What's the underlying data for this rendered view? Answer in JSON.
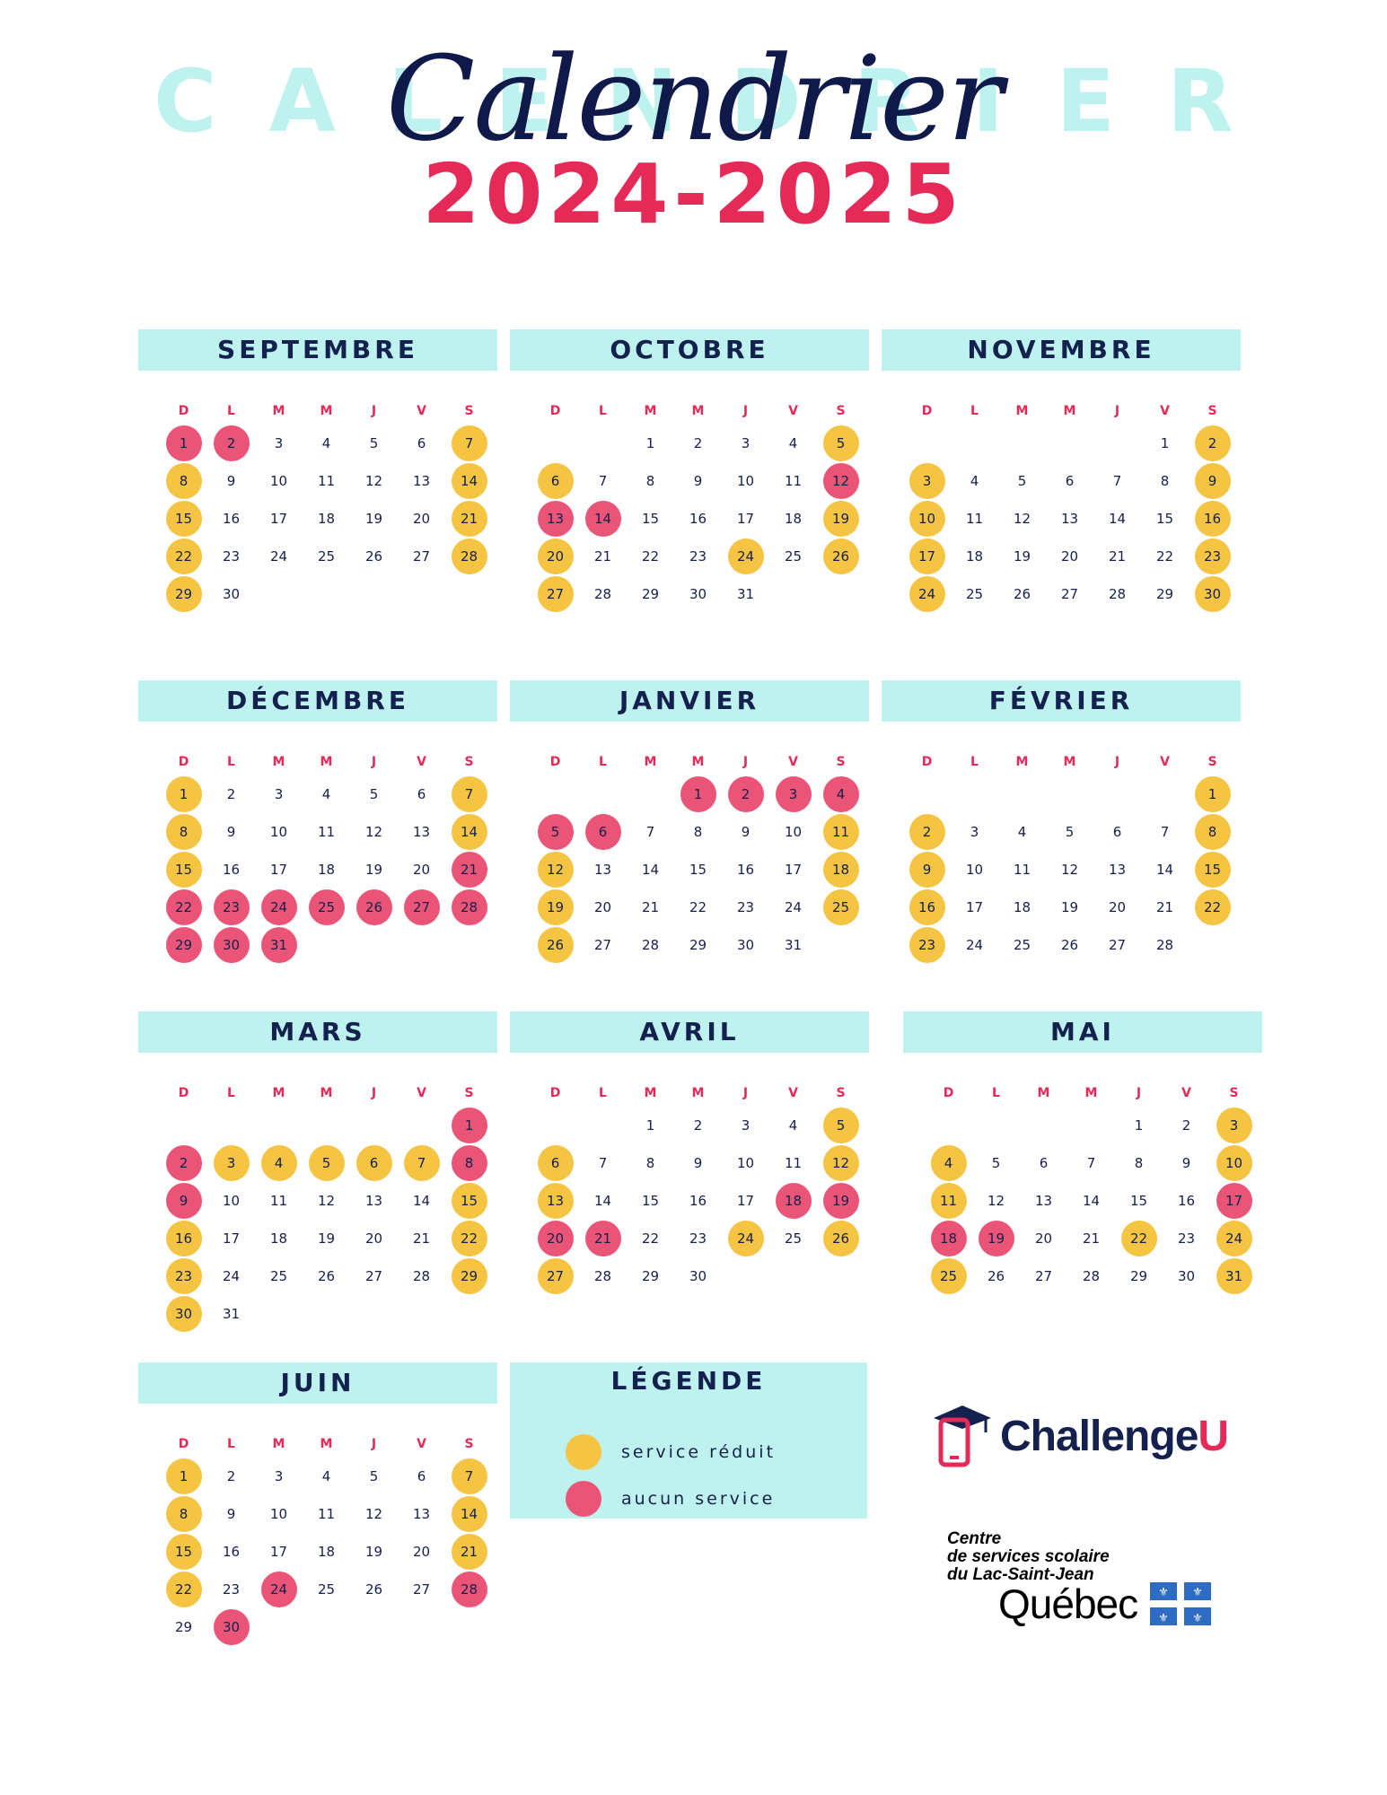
{
  "header": {
    "background_letters": [
      "C",
      "A",
      "L",
      "E",
      "N",
      "D",
      "R",
      "I",
      "E",
      "R"
    ],
    "script_title": "Calendrier",
    "year": "2024-2025"
  },
  "weekday_labels": [
    "D",
    "L",
    "M",
    "M",
    "J",
    "V",
    "S"
  ],
  "colors": {
    "reduced": "#f6c443",
    "none": "#ea5577",
    "header_bg": "#bdf2ef",
    "accent": "#e52a57",
    "navy": "#14204d"
  },
  "months": [
    {
      "name": "SEPTEMBRE",
      "weeks": [
        [
          {
            "d": "1",
            "s": "r"
          },
          {
            "d": "2",
            "s": "r"
          },
          {
            "d": "3"
          },
          {
            "d": "4"
          },
          {
            "d": "5"
          },
          {
            "d": "6"
          },
          {
            "d": "7",
            "s": "y"
          }
        ],
        [
          {
            "d": "8",
            "s": "y"
          },
          {
            "d": "9"
          },
          {
            "d": "10"
          },
          {
            "d": "11"
          },
          {
            "d": "12"
          },
          {
            "d": "13"
          },
          {
            "d": "14",
            "s": "y"
          }
        ],
        [
          {
            "d": "15",
            "s": "y"
          },
          {
            "d": "16"
          },
          {
            "d": "17"
          },
          {
            "d": "18"
          },
          {
            "d": "19"
          },
          {
            "d": "20"
          },
          {
            "d": "21",
            "s": "y"
          }
        ],
        [
          {
            "d": "22",
            "s": "y"
          },
          {
            "d": "23"
          },
          {
            "d": "24"
          },
          {
            "d": "25"
          },
          {
            "d": "26"
          },
          {
            "d": "27"
          },
          {
            "d": "28",
            "s": "y"
          }
        ],
        [
          {
            "d": "29",
            "s": "y"
          },
          {
            "d": "30"
          },
          {},
          {},
          {},
          {},
          {}
        ]
      ]
    },
    {
      "name": "OCTOBRE",
      "weeks": [
        [
          {},
          {},
          {
            "d": "1"
          },
          {
            "d": "2"
          },
          {
            "d": "3"
          },
          {
            "d": "4"
          },
          {
            "d": "5",
            "s": "y"
          }
        ],
        [
          {
            "d": "6",
            "s": "y"
          },
          {
            "d": "7"
          },
          {
            "d": "8"
          },
          {
            "d": "9"
          },
          {
            "d": "10"
          },
          {
            "d": "11"
          },
          {
            "d": "12",
            "s": "r"
          }
        ],
        [
          {
            "d": "13",
            "s": "r"
          },
          {
            "d": "14",
            "s": "r"
          },
          {
            "d": "15"
          },
          {
            "d": "16"
          },
          {
            "d": "17"
          },
          {
            "d": "18"
          },
          {
            "d": "19",
            "s": "y"
          }
        ],
        [
          {
            "d": "20",
            "s": "y"
          },
          {
            "d": "21"
          },
          {
            "d": "22"
          },
          {
            "d": "23"
          },
          {
            "d": "24",
            "s": "y"
          },
          {
            "d": "25"
          },
          {
            "d": "26",
            "s": "y"
          }
        ],
        [
          {
            "d": "27",
            "s": "y"
          },
          {
            "d": "28"
          },
          {
            "d": "29"
          },
          {
            "d": "30"
          },
          {
            "d": "31"
          },
          {},
          {}
        ]
      ]
    },
    {
      "name": "NOVEMBRE",
      "weeks": [
        [
          {},
          {},
          {},
          {},
          {},
          {
            "d": "1"
          },
          {
            "d": "2",
            "s": "y"
          }
        ],
        [
          {
            "d": "3",
            "s": "y"
          },
          {
            "d": "4"
          },
          {
            "d": "5"
          },
          {
            "d": "6"
          },
          {
            "d": "7"
          },
          {
            "d": "8"
          },
          {
            "d": "9",
            "s": "y"
          }
        ],
        [
          {
            "d": "10",
            "s": "y"
          },
          {
            "d": "11"
          },
          {
            "d": "12"
          },
          {
            "d": "13"
          },
          {
            "d": "14"
          },
          {
            "d": "15"
          },
          {
            "d": "16",
            "s": "y"
          }
        ],
        [
          {
            "d": "17",
            "s": "y"
          },
          {
            "d": "18"
          },
          {
            "d": "19"
          },
          {
            "d": "20"
          },
          {
            "d": "21"
          },
          {
            "d": "22"
          },
          {
            "d": "23",
            "s": "y"
          }
        ],
        [
          {
            "d": "24",
            "s": "y"
          },
          {
            "d": "25"
          },
          {
            "d": "26"
          },
          {
            "d": "27"
          },
          {
            "d": "28"
          },
          {
            "d": "29"
          },
          {
            "d": "30",
            "s": "y"
          }
        ]
      ]
    },
    {
      "name": "DÉCEMBRE",
      "weeks": [
        [
          {
            "d": "1",
            "s": "y"
          },
          {
            "d": "2"
          },
          {
            "d": "3"
          },
          {
            "d": "4"
          },
          {
            "d": "5"
          },
          {
            "d": "6"
          },
          {
            "d": "7",
            "s": "y"
          }
        ],
        [
          {
            "d": "8",
            "s": "y"
          },
          {
            "d": "9"
          },
          {
            "d": "10"
          },
          {
            "d": "11"
          },
          {
            "d": "12"
          },
          {
            "d": "13"
          },
          {
            "d": "14",
            "s": "y"
          }
        ],
        [
          {
            "d": "15",
            "s": "y"
          },
          {
            "d": "16"
          },
          {
            "d": "17"
          },
          {
            "d": "18"
          },
          {
            "d": "19"
          },
          {
            "d": "20"
          },
          {
            "d": "21",
            "s": "r"
          }
        ],
        [
          {
            "d": "22",
            "s": "r"
          },
          {
            "d": "23",
            "s": "r"
          },
          {
            "d": "24",
            "s": "r"
          },
          {
            "d": "25",
            "s": "r"
          },
          {
            "d": "26",
            "s": "r"
          },
          {
            "d": "27",
            "s": "r"
          },
          {
            "d": "28",
            "s": "r"
          }
        ],
        [
          {
            "d": "29",
            "s": "r"
          },
          {
            "d": "30",
            "s": "r"
          },
          {
            "d": "31",
            "s": "r"
          },
          {},
          {},
          {},
          {}
        ]
      ]
    },
    {
      "name": "JANVIER",
      "weeks": [
        [
          {},
          {},
          {},
          {
            "d": "1",
            "s": "r"
          },
          {
            "d": "2",
            "s": "r"
          },
          {
            "d": "3",
            "s": "r"
          },
          {
            "d": "4",
            "s": "r"
          }
        ],
        [
          {
            "d": "5",
            "s": "r"
          },
          {
            "d": "6",
            "s": "r"
          },
          {
            "d": "7"
          },
          {
            "d": "8"
          },
          {
            "d": "9"
          },
          {
            "d": "10"
          },
          {
            "d": "11",
            "s": "y"
          }
        ],
        [
          {
            "d": "12",
            "s": "y"
          },
          {
            "d": "13"
          },
          {
            "d": "14"
          },
          {
            "d": "15"
          },
          {
            "d": "16"
          },
          {
            "d": "17"
          },
          {
            "d": "18",
            "s": "y"
          }
        ],
        [
          {
            "d": "19",
            "s": "y"
          },
          {
            "d": "20"
          },
          {
            "d": "21"
          },
          {
            "d": "22"
          },
          {
            "d": "23"
          },
          {
            "d": "24"
          },
          {
            "d": "25",
            "s": "y"
          }
        ],
        [
          {
            "d": "26",
            "s": "y"
          },
          {
            "d": "27"
          },
          {
            "d": "28"
          },
          {
            "d": "29"
          },
          {
            "d": "30"
          },
          {
            "d": "31"
          },
          {}
        ]
      ]
    },
    {
      "name": "FÉVRIER",
      "weeks": [
        [
          {},
          {},
          {},
          {},
          {},
          {},
          {
            "d": "1",
            "s": "y"
          }
        ],
        [
          {
            "d": "2",
            "s": "y"
          },
          {
            "d": "3"
          },
          {
            "d": "4"
          },
          {
            "d": "5"
          },
          {
            "d": "6"
          },
          {
            "d": "7"
          },
          {
            "d": "8",
            "s": "y"
          }
        ],
        [
          {
            "d": "9",
            "s": "y"
          },
          {
            "d": "10"
          },
          {
            "d": "11"
          },
          {
            "d": "12"
          },
          {
            "d": "13"
          },
          {
            "d": "14"
          },
          {
            "d": "15",
            "s": "y"
          }
        ],
        [
          {
            "d": "16",
            "s": "y"
          },
          {
            "d": "17"
          },
          {
            "d": "18"
          },
          {
            "d": "19"
          },
          {
            "d": "20"
          },
          {
            "d": "21"
          },
          {
            "d": "22",
            "s": "y"
          }
        ],
        [
          {
            "d": "23",
            "s": "y"
          },
          {
            "d": "24"
          },
          {
            "d": "25"
          },
          {
            "d": "26"
          },
          {
            "d": "27"
          },
          {
            "d": "28"
          },
          {}
        ]
      ]
    },
    {
      "name": "MARS",
      "weeks": [
        [
          {},
          {},
          {},
          {},
          {},
          {},
          {
            "d": "1",
            "s": "r"
          }
        ],
        [
          {
            "d": "2",
            "s": "r"
          },
          {
            "d": "3",
            "s": "y"
          },
          {
            "d": "4",
            "s": "y"
          },
          {
            "d": "5",
            "s": "y"
          },
          {
            "d": "6",
            "s": "y"
          },
          {
            "d": "7",
            "s": "y"
          },
          {
            "d": "8",
            "s": "r"
          }
        ],
        [
          {
            "d": "9",
            "s": "r"
          },
          {
            "d": "10"
          },
          {
            "d": "11"
          },
          {
            "d": "12"
          },
          {
            "d": "13"
          },
          {
            "d": "14"
          },
          {
            "d": "15",
            "s": "y"
          }
        ],
        [
          {
            "d": "16",
            "s": "y"
          },
          {
            "d": "17"
          },
          {
            "d": "18"
          },
          {
            "d": "19"
          },
          {
            "d": "20"
          },
          {
            "d": "21"
          },
          {
            "d": "22",
            "s": "y"
          }
        ],
        [
          {
            "d": "23",
            "s": "y"
          },
          {
            "d": "24"
          },
          {
            "d": "25"
          },
          {
            "d": "26"
          },
          {
            "d": "27"
          },
          {
            "d": "28"
          },
          {
            "d": "29",
            "s": "y"
          }
        ],
        [
          {
            "d": "30",
            "s": "y"
          },
          {
            "d": "31"
          },
          {},
          {},
          {},
          {},
          {}
        ]
      ]
    },
    {
      "name": "AVRIL",
      "weeks": [
        [
          {},
          {},
          {
            "d": "1"
          },
          {
            "d": "2"
          },
          {
            "d": "3"
          },
          {
            "d": "4"
          },
          {
            "d": "5",
            "s": "y"
          }
        ],
        [
          {
            "d": "6",
            "s": "y"
          },
          {
            "d": "7"
          },
          {
            "d": "8"
          },
          {
            "d": "9"
          },
          {
            "d": "10"
          },
          {
            "d": "11"
          },
          {
            "d": "12",
            "s": "y"
          }
        ],
        [
          {
            "d": "13",
            "s": "y"
          },
          {
            "d": "14"
          },
          {
            "d": "15"
          },
          {
            "d": "16"
          },
          {
            "d": "17"
          },
          {
            "d": "18",
            "s": "r"
          },
          {
            "d": "19",
            "s": "r"
          }
        ],
        [
          {
            "d": "20",
            "s": "r"
          },
          {
            "d": "21",
            "s": "r"
          },
          {
            "d": "22"
          },
          {
            "d": "23"
          },
          {
            "d": "24",
            "s": "y"
          },
          {
            "d": "25"
          },
          {
            "d": "26",
            "s": "y"
          }
        ],
        [
          {
            "d": "27",
            "s": "y"
          },
          {
            "d": "28"
          },
          {
            "d": "29"
          },
          {
            "d": "30"
          },
          {},
          {},
          {}
        ]
      ]
    },
    {
      "name": "MAI",
      "weeks": [
        [
          {},
          {},
          {},
          {},
          {
            "d": "1"
          },
          {
            "d": "2"
          },
          {
            "d": "3",
            "s": "y"
          }
        ],
        [
          {
            "d": "4",
            "s": "y"
          },
          {
            "d": "5"
          },
          {
            "d": "6"
          },
          {
            "d": "7"
          },
          {
            "d": "8"
          },
          {
            "d": "9"
          },
          {
            "d": "10",
            "s": "y"
          }
        ],
        [
          {
            "d": "11",
            "s": "y"
          },
          {
            "d": "12"
          },
          {
            "d": "13"
          },
          {
            "d": "14"
          },
          {
            "d": "15"
          },
          {
            "d": "16"
          },
          {
            "d": "17",
            "s": "r"
          }
        ],
        [
          {
            "d": "18",
            "s": "r"
          },
          {
            "d": "19",
            "s": "r"
          },
          {
            "d": "20"
          },
          {
            "d": "21"
          },
          {
            "d": "22",
            "s": "y"
          },
          {
            "d": "23"
          },
          {
            "d": "24",
            "s": "y"
          }
        ],
        [
          {
            "d": "25",
            "s": "y"
          },
          {
            "d": "26"
          },
          {
            "d": "27"
          },
          {
            "d": "28"
          },
          {
            "d": "29"
          },
          {
            "d": "30"
          },
          {
            "d": "31",
            "s": "y"
          }
        ]
      ]
    },
    {
      "name": "JUIN",
      "weeks": [
        [
          {
            "d": "1",
            "s": "y"
          },
          {
            "d": "2"
          },
          {
            "d": "3"
          },
          {
            "d": "4"
          },
          {
            "d": "5"
          },
          {
            "d": "6"
          },
          {
            "d": "7",
            "s": "y"
          }
        ],
        [
          {
            "d": "8",
            "s": "y"
          },
          {
            "d": "9"
          },
          {
            "d": "10"
          },
          {
            "d": "11"
          },
          {
            "d": "12"
          },
          {
            "d": "13"
          },
          {
            "d": "14",
            "s": "y"
          }
        ],
        [
          {
            "d": "15",
            "s": "y"
          },
          {
            "d": "16"
          },
          {
            "d": "17"
          },
          {
            "d": "18"
          },
          {
            "d": "19"
          },
          {
            "d": "20"
          },
          {
            "d": "21",
            "s": "y"
          }
        ],
        [
          {
            "d": "22",
            "s": "y"
          },
          {
            "d": "23"
          },
          {
            "d": "24",
            "s": "r"
          },
          {
            "d": "25"
          },
          {
            "d": "26"
          },
          {
            "d": "27"
          },
          {
            "d": "28",
            "s": "r"
          }
        ],
        [
          {
            "d": "29"
          },
          {
            "d": "30",
            "s": "r"
          },
          {},
          {},
          {},
          {},
          {}
        ]
      ]
    }
  ],
  "legend": {
    "title": "LÉGENDE",
    "items": [
      {
        "label": "service réduit",
        "color": "#f6c443"
      },
      {
        "label": "aucun service",
        "color": "#ea5577"
      }
    ]
  },
  "logos": {
    "challengeu_main": "Challenge",
    "challengeu_accent": "U",
    "css_line1": "Centre",
    "css_line2": "de services scolaire",
    "css_line3": "du Lac-Saint-Jean",
    "quebec": "Québec"
  }
}
